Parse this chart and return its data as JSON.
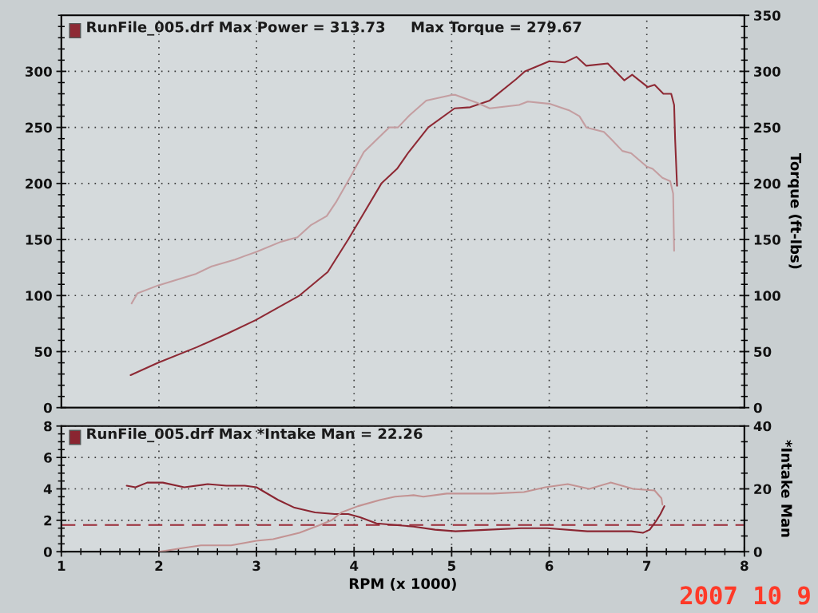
{
  "chart_data": [
    {
      "type": "line",
      "title": "RunFile_005.drf Max Power = 313.73     Max Torque = 279.67",
      "y2label": "Torque (ft-lbs)",
      "xlim": [
        1,
        8
      ],
      "xticks": [
        1,
        2,
        3,
        4,
        5,
        6,
        7,
        8
      ],
      "ylim": [
        0,
        350
      ],
      "yticks": [
        0,
        50,
        100,
        150,
        200,
        250,
        300
      ],
      "y2lim": [
        0,
        350
      ],
      "y2ticks": [
        0,
        50,
        100,
        150,
        200,
        250,
        300,
        350
      ],
      "grid": true,
      "tick_labels": "y",
      "series": [
        {
          "color": "#8e2a35",
          "x": [
            1.71,
            1.99,
            2.39,
            2.7,
            2.99,
            3.44,
            3.73,
            3.94,
            4.28,
            4.44,
            4.56,
            4.76,
            5.03,
            5.19,
            5.39,
            5.66,
            5.75,
            6.0,
            6.16,
            6.28,
            6.38,
            6.6,
            6.77,
            6.85,
            7.01,
            7.08,
            7.17,
            7.25,
            7.28,
            7.29,
            7.31
          ],
          "values": [
            29,
            40,
            54,
            66,
            78,
            100,
            121,
            150,
            200,
            213,
            228,
            250,
            267,
            268,
            274,
            293,
            300,
            309,
            308,
            313,
            305,
            307,
            292,
            297,
            286,
            288,
            280,
            280,
            270,
            240,
            198
          ]
        },
        {
          "color": "#c49ea1",
          "axis": "y2",
          "x": [
            1.72,
            1.78,
            1.99,
            2.37,
            2.54,
            2.78,
            2.87,
            3.0,
            3.25,
            3.42,
            3.56,
            3.72,
            3.82,
            3.97,
            4.1,
            4.3,
            4.36,
            4.45,
            4.57,
            4.74,
            5.0,
            5.04,
            5.26,
            5.39,
            5.69,
            5.78,
            6.01,
            6.21,
            6.31,
            6.38,
            6.56,
            6.63,
            6.75,
            6.84,
            7.0,
            7.06,
            7.16,
            7.24,
            7.27,
            7.28
          ],
          "values": [
            93,
            102,
            109,
            119,
            126,
            132,
            135,
            139,
            148,
            152,
            163,
            171,
            184,
            207,
            228,
            245,
            250,
            250,
            261,
            274,
            279,
            279,
            272,
            267,
            270,
            273,
            271,
            265,
            260,
            250,
            246,
            240,
            229,
            227,
            215,
            213,
            205,
            202,
            191,
            140
          ]
        }
      ]
    },
    {
      "type": "line",
      "title": "RunFile_005.drf Max *Intake Man = 22.26",
      "xlabel": "RPM (x 1000)",
      "y2label": "*Intake Man",
      "xlim": [
        1,
        8
      ],
      "xticks": [
        1,
        2,
        3,
        4,
        5,
        6,
        7,
        8
      ],
      "ylim": [
        0,
        8
      ],
      "yticks": [
        0,
        2,
        4,
        6,
        8
      ],
      "y2lim": [
        0,
        40
      ],
      "y2ticks": [
        0,
        20,
        40
      ],
      "grid": true,
      "ref_lines": [
        {
          "axis": "y",
          "value": 1.7,
          "color": "#9a2a36",
          "line_style": "dashed"
        }
      ],
      "annotations": [
        "2007 10 9"
      ],
      "series": [
        {
          "color": "#8a2531",
          "x": [
            1.67,
            1.76,
            1.88,
            2.04,
            2.26,
            2.5,
            2.69,
            2.88,
            3.0,
            3.22,
            3.39,
            3.6,
            3.8,
            3.94,
            4.06,
            4.23,
            4.42,
            4.61,
            4.83,
            5.04,
            5.38,
            5.71,
            5.98,
            6.39,
            6.84,
            6.96,
            7.03,
            7.1,
            7.14,
            7.18
          ],
          "values": [
            4.2,
            4.1,
            4.4,
            4.4,
            4.1,
            4.3,
            4.2,
            4.2,
            4.1,
            3.3,
            2.8,
            2.5,
            2.4,
            2.4,
            2.2,
            1.8,
            1.7,
            1.6,
            1.4,
            1.3,
            1.4,
            1.5,
            1.5,
            1.3,
            1.3,
            1.2,
            1.4,
            2.0,
            2.4,
            2.9
          ]
        },
        {
          "color": "#c39393",
          "axis": "y2",
          "x": [
            2.0,
            2.21,
            2.43,
            2.74,
            3.0,
            3.17,
            3.44,
            3.65,
            3.77,
            3.87,
            4.04,
            4.27,
            4.42,
            4.61,
            4.71,
            4.95,
            5.42,
            5.74,
            5.96,
            6.19,
            6.41,
            6.63,
            6.86,
            7.08,
            7.15,
            7.16
          ],
          "values": [
            0,
            1,
            2,
            2,
            3.5,
            4,
            6,
            8.5,
            10,
            12.5,
            14.5,
            16.5,
            17.5,
            18,
            17.5,
            18.5,
            18.5,
            19,
            20.5,
            21.5,
            20,
            22,
            20,
            19.5,
            17,
            15
          ]
        }
      ]
    }
  ]
}
